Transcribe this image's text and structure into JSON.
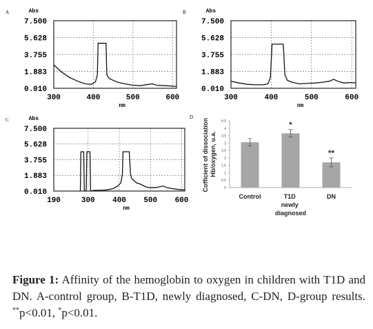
{
  "chart_data": [
    {
      "type": "line",
      "panel": "A",
      "y_label": "Abs",
      "x_label": "nm",
      "x": [
        300,
        320,
        340,
        360,
        380,
        395,
        405,
        410,
        412,
        432,
        434,
        440,
        450,
        460,
        480,
        500,
        520,
        540,
        550,
        560,
        580,
        600,
        610
      ],
      "values": [
        2.6,
        1.8,
        1.2,
        0.8,
        0.5,
        0.45,
        0.7,
        1.5,
        5.0,
        5.0,
        1.5,
        1.1,
        0.9,
        0.7,
        0.5,
        0.35,
        0.3,
        0.45,
        0.5,
        0.35,
        0.3,
        0.25,
        0.2
      ],
      "color": "#111111",
      "xlim": [
        300,
        610
      ],
      "xticks": [
        300,
        400,
        500,
        600
      ],
      "ylim": [
        0.01,
        7.5
      ],
      "yticks": [
        {
          "value": 7.5,
          "label": "7.500"
        },
        {
          "value": 5.628,
          "label": "5.628"
        },
        {
          "value": 3.755,
          "label": "3.755"
        },
        {
          "value": 1.883,
          "label": "1.883"
        },
        {
          "value": 0.01,
          "label": "0.010"
        }
      ],
      "grid": true
    },
    {
      "type": "line",
      "panel": "B",
      "y_label": "Abs",
      "x_label": "nm",
      "x": [
        300,
        320,
        340,
        360,
        380,
        392,
        398,
        402,
        430,
        434,
        440,
        450,
        470,
        490,
        510,
        530,
        545,
        555,
        565,
        580,
        600,
        610
      ],
      "values": [
        0.8,
        0.6,
        0.45,
        0.4,
        0.4,
        0.5,
        1.2,
        4.9,
        4.9,
        1.5,
        0.9,
        0.7,
        0.5,
        0.55,
        0.6,
        0.7,
        0.8,
        1.0,
        0.8,
        0.6,
        0.65,
        0.6
      ],
      "color": "#111111",
      "xlim": [
        300,
        610
      ],
      "xticks": [
        300,
        400,
        500,
        600
      ],
      "ylim": [
        0.01,
        7.5
      ],
      "yticks": [
        {
          "value": 7.5,
          "label": "7.500"
        },
        {
          "value": 5.628,
          "label": "5.628"
        },
        {
          "value": 3.755,
          "label": "3.755"
        },
        {
          "value": 1.883,
          "label": "1.883"
        },
        {
          "value": 0.01,
          "label": "0.010"
        }
      ],
      "grid": true
    },
    {
      "type": "line",
      "panel": "C",
      "y_label": "Abs",
      "x_label": "nm",
      "x": [
        275,
        277,
        279,
        286,
        288,
        292,
        294,
        296,
        306,
        308,
        320,
        340,
        360,
        380,
        395,
        405,
        410,
        412,
        432,
        436,
        440,
        455,
        470,
        485,
        500,
        520,
        540,
        555,
        570,
        590,
        610
      ],
      "values": [
        0.01,
        4.7,
        4.7,
        4.7,
        0.01,
        0.01,
        0.01,
        4.7,
        4.7,
        0.01,
        0.1,
        0.1,
        0.15,
        0.3,
        0.6,
        1.0,
        2.0,
        4.7,
        4.7,
        2.0,
        1.5,
        1.0,
        0.8,
        0.5,
        0.4,
        0.45,
        0.6,
        0.4,
        0.3,
        0.2,
        0.15
      ],
      "color": "#111111",
      "xlim": [
        190,
        610
      ],
      "xticks": [
        190,
        300,
        400,
        500,
        600
      ],
      "ylim": [
        0.01,
        7.5
      ],
      "yticks": [
        {
          "value": 7.5,
          "label": "7.500"
        },
        {
          "value": 5.628,
          "label": "5.628"
        },
        {
          "value": 3.755,
          "label": "3.755"
        },
        {
          "value": 1.883,
          "label": "1.883"
        },
        {
          "value": 0.01,
          "label": "0.010"
        }
      ],
      "grid": true
    },
    {
      "type": "bar",
      "panel": "D",
      "y_label": "Cofficient of dissociation Hb/oxygen, u.a.",
      "categories": [
        "Control",
        "T1D newly diagnosed",
        "DN"
      ],
      "values": [
        3.05,
        3.65,
        1.7
      ],
      "errors": [
        0.25,
        0.25,
        0.3
      ],
      "significance": [
        null,
        "*",
        "**"
      ],
      "color": "#a6a6a6",
      "ylim": [
        0,
        4.5
      ],
      "yticks": [
        0,
        {
          "value": 0.5,
          "label": "0,5"
        },
        1,
        {
          "value": 1.5,
          "label": "1,5"
        },
        2,
        {
          "value": 2.5,
          "label": "2,5"
        },
        3,
        {
          "value": 3.5,
          "label": "3,5"
        },
        4,
        {
          "value": 4.5,
          "label": "4,5"
        }
      ]
    }
  ],
  "caption": {
    "label": "Figure 1:",
    "text": "Affinity of the hemoglobin to oxygen in children with T1D and DN. A-control group, B-T1D, newly diagnosed, C-DN, D-group results.",
    "sup1": "**",
    "text2": "p<0.01,",
    "sup2": "*",
    "text3": "p<0.01."
  }
}
